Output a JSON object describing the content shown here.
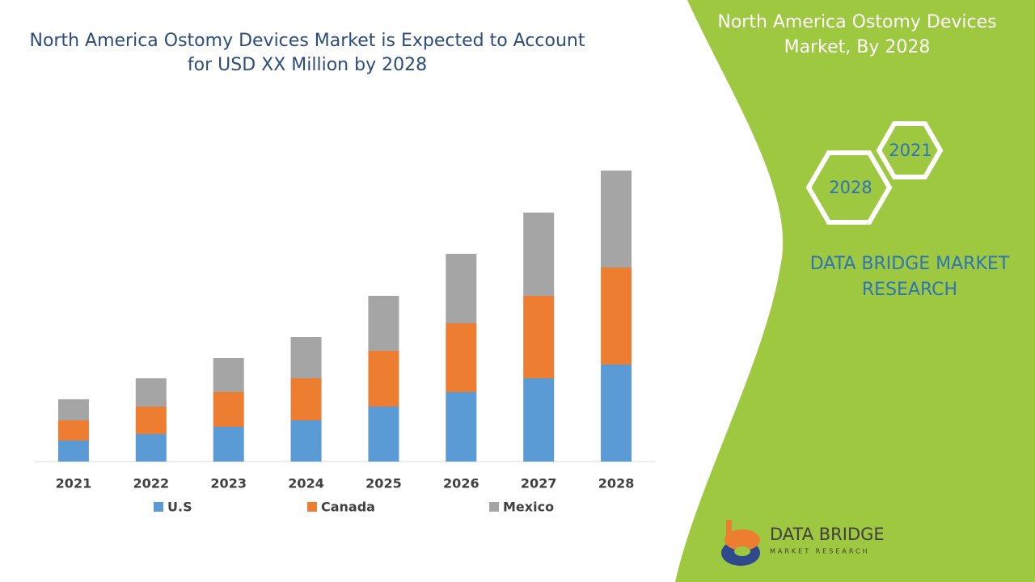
{
  "chart_data": {
    "type": "stacked_bar",
    "title": "North America Ostomy Devices Market is Expected to Account for USD XX Million by 2028",
    "categories": [
      "2021",
      "2022",
      "2023",
      "2024",
      "2025",
      "2026",
      "2027",
      "2028"
    ],
    "series": [
      {
        "name": "U.S",
        "color": "#5b9bd5",
        "values": [
          26,
          34,
          43,
          51,
          68,
          86,
          103,
          120
        ]
      },
      {
        "name": "Canada",
        "color": "#ed7d31",
        "values": [
          25,
          34,
          43,
          52,
          69,
          85,
          102,
          120
        ]
      },
      {
        "name": "Mexico",
        "color": "#a5a5a5",
        "values": [
          26,
          35,
          42,
          51,
          68,
          86,
          103,
          120
        ]
      }
    ],
    "legend": "bottom"
  },
  "panel": {
    "title": "North America Ostomy Devices Market, By 2028",
    "hexagons": [
      "2028",
      "2021"
    ],
    "brand": "DATA BRIDGE MARKET RESEARCH"
  },
  "logo": {
    "name": "DATA BRIDGE",
    "tagline": "MARKET RESEARCH"
  }
}
